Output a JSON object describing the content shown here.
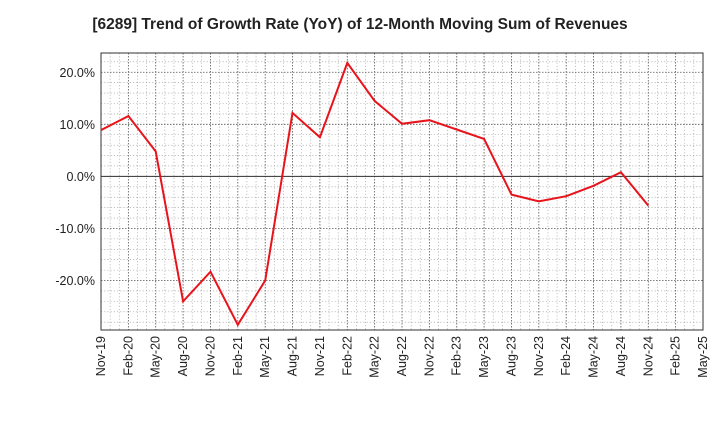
{
  "chart_data": {
    "type": "line",
    "title": "[6289]  Trend of Growth Rate (YoY) of 12-Month Moving Sum of Revenues",
    "xlabel": "",
    "ylabel": "",
    "categories": [
      "Nov-19",
      "Feb-20",
      "May-20",
      "Aug-20",
      "Nov-20",
      "Feb-21",
      "May-21",
      "Aug-21",
      "Nov-21",
      "Feb-22",
      "May-22",
      "Aug-22",
      "Nov-22",
      "Feb-23",
      "May-23",
      "Aug-23",
      "Nov-23",
      "Feb-24",
      "May-24",
      "Aug-24",
      "Nov-24",
      "Feb-25",
      "May-25"
    ],
    "series": [
      {
        "name": "",
        "color": "#e8131b",
        "values": [
          8.9,
          11.6,
          4.8,
          -24.0,
          -18.3,
          -28.5,
          -20.0,
          12.2,
          7.5,
          21.8,
          14.5,
          10.1,
          10.8,
          9.0,
          7.2,
          -3.5,
          -4.8,
          -3.8,
          -1.8,
          0.8,
          -5.6,
          null,
          null
        ]
      }
    ],
    "ylim": [
      -29.5,
      23.7
    ],
    "yticks": [
      20,
      10,
      0,
      -10,
      -20
    ],
    "ytick_labels": [
      "20.0%",
      "10.0%",
      "0.0%",
      "-10.0%",
      "-20.0%"
    ],
    "grid": true,
    "legend": "none"
  }
}
